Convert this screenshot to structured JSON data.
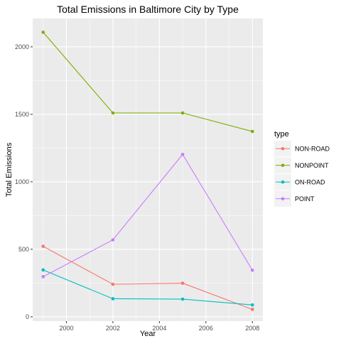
{
  "chart_data": {
    "type": "line",
    "title": "Total Emissions in Baltimore City by Type",
    "xlabel": "Year",
    "ylabel": "Total Emissions",
    "x": [
      1999,
      2002,
      2005,
      2008
    ],
    "xlim": [
      1998.55,
      2008.45
    ],
    "ylim": [
      -32,
      2210
    ],
    "xticks": [
      2000,
      2002,
      2004,
      2006,
      2008
    ],
    "yticks": [
      0,
      500,
      1000,
      1500,
      2000
    ],
    "grid": true,
    "legend_title": "type",
    "legend_position": "right",
    "series": [
      {
        "name": "NON-ROAD",
        "color": "#F8766D",
        "values": [
          522,
          241,
          249,
          55
        ]
      },
      {
        "name": "NONPOINT",
        "color": "#7CAE00",
        "values": [
          2108,
          1510,
          1510,
          1373
        ]
      },
      {
        "name": "ON-ROAD",
        "color": "#00BFC4",
        "values": [
          347,
          134,
          131,
          88
        ]
      },
      {
        "name": "POINT",
        "color": "#C77CFF",
        "values": [
          297,
          570,
          1203,
          345
        ]
      }
    ]
  }
}
